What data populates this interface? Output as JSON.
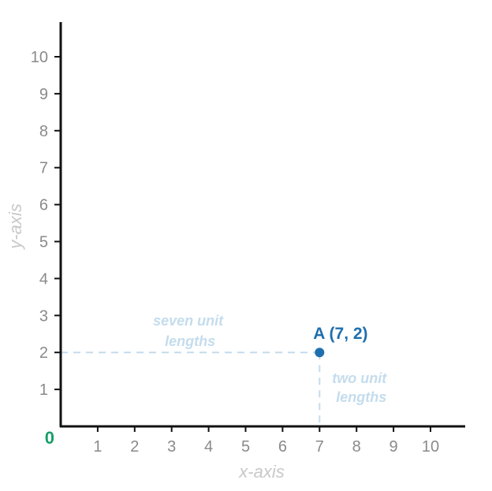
{
  "chart_data": {
    "type": "scatter",
    "xlabel": "x-axis",
    "ylabel": "y-axis",
    "origin_label": "0",
    "xlim": [
      0,
      11
    ],
    "ylim": [
      0,
      11
    ],
    "x_ticks": [
      1,
      2,
      3,
      4,
      5,
      6,
      7,
      8,
      9,
      10
    ],
    "y_ticks": [
      1,
      2,
      3,
      4,
      5,
      6,
      7,
      8,
      9,
      10
    ],
    "grid": false,
    "points": [
      {
        "label": "A (7, 2)",
        "x": 7,
        "y": 2
      }
    ],
    "annotations": {
      "horizontal": [
        "seven unit",
        "lengths"
      ],
      "vertical": [
        "two unit",
        "lengths"
      ]
    },
    "colors": {
      "axis": "#111111",
      "tick_label": "#8a8a8a",
      "axis_title": "#c8c8c8",
      "origin": "#1a9e6a",
      "point": "#1f6fae",
      "guide": "#c4dced"
    }
  }
}
